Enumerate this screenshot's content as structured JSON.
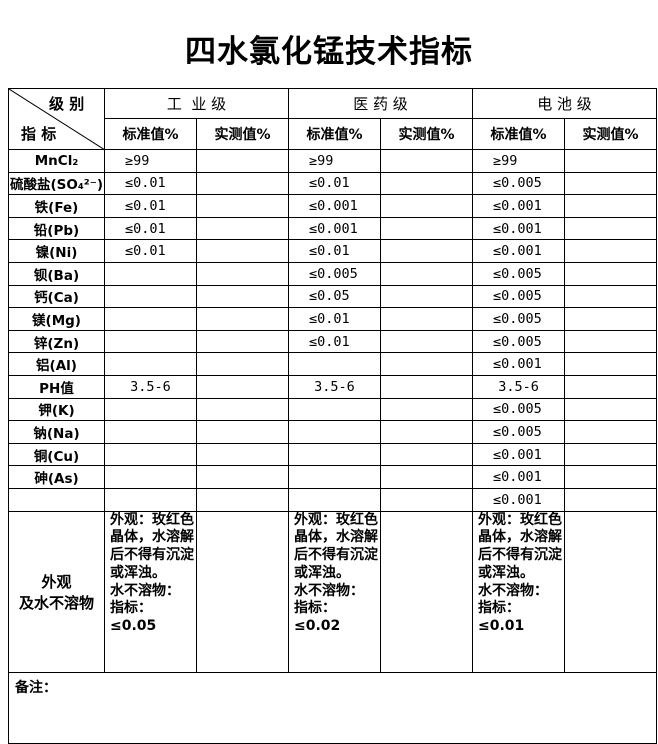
{
  "title": "四水氯化锰技术指标",
  "header": {
    "corner_top": "级 别",
    "corner_bottom": "指 标",
    "grades": [
      "工  业 级",
      "医 药 级",
      "电 池 级"
    ],
    "std": "标准值%",
    "measured": "实测值%"
  },
  "rows": [
    {
      "name": "MnCl₂",
      "v": [
        "≥99",
        "≥99",
        "≥99"
      ]
    },
    {
      "name": "硫酸盐(SO₄²⁻)",
      "v": [
        "≤0.01",
        "≤0.01",
        "≤0.005"
      ]
    },
    {
      "name": "铁(Fe)",
      "v": [
        "≤0.01",
        "≤0.001",
        "≤0.001"
      ]
    },
    {
      "name": "铅(Pb)",
      "v": [
        "≤0.01",
        "≤0.001",
        "≤0.001"
      ]
    },
    {
      "name": "镍(Ni)",
      "v": [
        "≤0.01",
        "≤0.01",
        "≤0.001"
      ]
    },
    {
      "name": "钡(Ba)",
      "v": [
        "",
        "≤0.005",
        "≤0.005"
      ]
    },
    {
      "name": "钙(Ca)",
      "v": [
        "",
        "≤0.05",
        "≤0.005"
      ]
    },
    {
      "name": "镁(Mg)",
      "v": [
        "",
        "≤0.01",
        "≤0.005"
      ]
    },
    {
      "name": "锌(Zn)",
      "v": [
        "",
        "≤0.01",
        "≤0.005"
      ]
    },
    {
      "name": "铝(Al)",
      "v": [
        "",
        "",
        "≤0.001"
      ]
    },
    {
      "name": "PH值",
      "v": [
        "3.5-6",
        "3.5-6",
        "3.5-6"
      ]
    },
    {
      "name": "钾(K)",
      "v": [
        "",
        "",
        "≤0.005"
      ]
    },
    {
      "name": "钠(Na)",
      "v": [
        "",
        "",
        "≤0.005"
      ]
    },
    {
      "name": "铜(Cu)",
      "v": [
        "",
        "",
        "≤0.001"
      ]
    },
    {
      "name": "砷(As)",
      "v": [
        "",
        "",
        "≤0.001"
      ]
    },
    {
      "name": "",
      "v": [
        "",
        "",
        "≤0.001"
      ]
    }
  ],
  "appearance": {
    "label": "外观\n及水不溶物",
    "v": [
      "外观：玫红色晶体，水溶解后不得有沉淀或浑浊。\n水不溶物：\n指标：\n≤0.05",
      "外观：玫红色晶体，水溶解后不得有沉淀或浑浊。\n水不溶物：\n指标：\n≤0.02",
      "外观：玫红色晶体，水溶解后不得有沉淀或浑浊。\n水不溶物：\n指标：\n≤0.01"
    ]
  },
  "note_label": "备注："
}
